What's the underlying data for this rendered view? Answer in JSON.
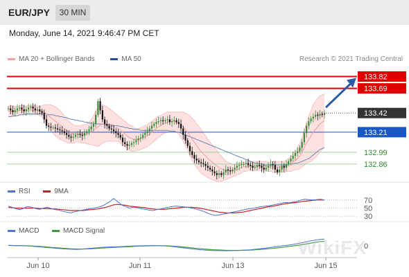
{
  "header": {
    "pair": "EUR/JPY",
    "timeframe": "30 MIN"
  },
  "timestamp": "Monday, June 14, 2021 9:46:47 PM CET",
  "legend": {
    "items": [
      {
        "label": "MA 20 + Bollinger Bands",
        "color": "#f2a3a3"
      },
      {
        "label": "MA 50",
        "color": "#2a4f8f"
      }
    ],
    "credit": "Research © 2021 Trading Central"
  },
  "colors": {
    "resistance": "#e00000",
    "pivot": "#333333",
    "support_blue": "#1a56c4",
    "support_green": "#2a8a2a",
    "candle_up": "#3a8a3a",
    "candle_down": "#111111",
    "bollinger_fill": "#fde0e0",
    "arrow": "#2b5aa8"
  },
  "chart_data": [
    {
      "type": "candlestick",
      "title": "",
      "x_ticks": [
        "Jun 10",
        "Jun 11",
        "Jun 13",
        "Jun 15"
      ],
      "ylim": [
        132.7,
        133.9
      ],
      "levels": [
        {
          "value": 133.82,
          "label": "133.82",
          "style": "resistance"
        },
        {
          "value": 133.69,
          "label": "133.69",
          "style": "resistance"
        },
        {
          "value": 133.42,
          "label": "133.42",
          "style": "pivot"
        },
        {
          "value": 133.21,
          "label": "133.21",
          "style": "support_blue"
        },
        {
          "value": 132.99,
          "label": "132.99",
          "style": "support_green"
        },
        {
          "value": 132.86,
          "label": "132.86",
          "style": "support_green"
        }
      ],
      "close_series": [
        133.47,
        133.45,
        133.43,
        133.45,
        133.47,
        133.48,
        133.46,
        133.44,
        133.46,
        133.48,
        133.49,
        133.47,
        133.45,
        133.46,
        133.44,
        133.42,
        133.35,
        133.28,
        133.27,
        133.26,
        133.26,
        133.25,
        133.24,
        133.23,
        133.22,
        133.2,
        133.18,
        133.16,
        133.15,
        133.16,
        133.18,
        133.19,
        133.18,
        133.17,
        133.2,
        133.22,
        133.24,
        133.27,
        133.3,
        133.4,
        133.55,
        133.45,
        133.35,
        133.3,
        133.28,
        133.25,
        133.24,
        133.22,
        133.2,
        133.18,
        133.15,
        133.1,
        133.08,
        133.06,
        133.07,
        133.09,
        133.1,
        133.12,
        133.14,
        133.15,
        133.18,
        133.2,
        133.22,
        133.25,
        133.28,
        133.3,
        133.32,
        133.33,
        133.34,
        133.33,
        133.34,
        133.35,
        133.32,
        133.33,
        133.34,
        133.32,
        133.3,
        133.25,
        133.18,
        133.12,
        133.06,
        133.0,
        132.96,
        132.92,
        132.9,
        132.88,
        132.87,
        132.86,
        132.84,
        132.82,
        132.8,
        132.78,
        132.76,
        132.74,
        132.76,
        132.74,
        132.77,
        132.8,
        132.79,
        132.78,
        132.8,
        132.82,
        132.84,
        132.85,
        132.86,
        132.86,
        132.87,
        132.85,
        132.84,
        132.82,
        132.83,
        132.85,
        132.84,
        132.82,
        132.8,
        132.82,
        132.84,
        132.86,
        132.85,
        132.8,
        132.77,
        132.8,
        132.84,
        132.82,
        132.86,
        132.89,
        132.92,
        132.95,
        132.98,
        133.0,
        133.04,
        133.1,
        133.2,
        133.28,
        133.33,
        133.36,
        133.38,
        133.4,
        133.39,
        133.41,
        133.4,
        133.42
      ],
      "ma20_series": [
        133.44,
        133.44,
        133.44,
        133.44,
        133.44,
        133.45,
        133.45,
        133.45,
        133.45,
        133.45,
        133.45,
        133.45,
        133.45,
        133.45,
        133.44,
        133.44,
        133.43,
        133.41,
        133.39,
        133.37,
        133.35,
        133.33,
        133.31,
        133.29,
        133.27,
        133.25,
        133.23,
        133.21,
        133.2,
        133.19,
        133.19,
        133.19,
        133.19,
        133.19,
        133.19,
        133.19,
        133.2,
        133.21,
        133.23,
        133.25,
        133.27,
        133.29,
        133.3,
        133.3,
        133.3,
        133.29,
        133.28,
        133.27,
        133.26,
        133.25,
        133.23,
        133.21,
        133.19,
        133.17,
        133.15,
        133.14,
        133.13,
        133.13,
        133.13,
        133.14,
        133.15,
        133.16,
        133.17,
        133.19,
        133.21,
        133.23,
        133.25,
        133.27,
        133.28,
        133.3,
        133.31,
        133.32,
        133.33,
        133.33,
        133.33,
        133.32,
        133.31,
        133.29,
        133.27,
        133.24,
        133.21,
        133.17,
        133.13,
        133.1,
        133.06,
        133.03,
        133.0,
        132.97,
        132.95,
        132.92,
        132.9,
        132.88,
        132.86,
        132.84,
        132.82,
        132.81,
        132.8,
        132.79,
        132.79,
        132.79,
        132.79,
        132.79,
        132.8,
        132.81,
        132.82,
        132.83,
        132.83,
        132.84,
        132.84,
        132.84,
        132.84,
        132.84,
        132.84,
        132.84,
        132.84,
        132.84,
        132.83,
        132.83,
        132.83,
        132.83,
        132.83,
        132.83,
        132.83,
        132.83,
        132.84,
        132.85,
        132.86,
        132.88,
        132.9,
        132.92,
        132.95,
        132.99,
        133.04,
        133.09,
        133.13,
        133.17,
        133.21,
        133.24,
        133.27,
        133.3,
        133.32,
        133.34
      ],
      "bb_width_series": [
        0.06,
        0.06,
        0.06,
        0.05,
        0.05,
        0.05,
        0.05,
        0.05,
        0.05,
        0.05,
        0.05,
        0.05,
        0.05,
        0.05,
        0.05,
        0.06,
        0.08,
        0.1,
        0.12,
        0.14,
        0.15,
        0.16,
        0.16,
        0.16,
        0.15,
        0.14,
        0.13,
        0.12,
        0.11,
        0.1,
        0.09,
        0.09,
        0.09,
        0.1,
        0.1,
        0.11,
        0.12,
        0.14,
        0.16,
        0.19,
        0.22,
        0.22,
        0.21,
        0.2,
        0.19,
        0.18,
        0.17,
        0.16,
        0.15,
        0.14,
        0.14,
        0.14,
        0.14,
        0.14,
        0.14,
        0.14,
        0.13,
        0.12,
        0.12,
        0.12,
        0.12,
        0.12,
        0.12,
        0.12,
        0.12,
        0.12,
        0.12,
        0.12,
        0.11,
        0.11,
        0.11,
        0.11,
        0.1,
        0.1,
        0.1,
        0.11,
        0.12,
        0.14,
        0.16,
        0.18,
        0.2,
        0.22,
        0.23,
        0.24,
        0.24,
        0.24,
        0.24,
        0.23,
        0.22,
        0.21,
        0.2,
        0.19,
        0.18,
        0.17,
        0.15,
        0.14,
        0.12,
        0.1,
        0.09,
        0.08,
        0.07,
        0.06,
        0.06,
        0.06,
        0.06,
        0.05,
        0.05,
        0.05,
        0.05,
        0.05,
        0.05,
        0.05,
        0.05,
        0.05,
        0.05,
        0.05,
        0.05,
        0.05,
        0.06,
        0.06,
        0.06,
        0.06,
        0.06,
        0.06,
        0.06,
        0.07,
        0.08,
        0.09,
        0.1,
        0.12,
        0.14,
        0.16,
        0.19,
        0.22,
        0.25,
        0.28,
        0.3,
        0.31,
        0.31,
        0.31,
        0.3,
        0.29,
        0.28,
        0.27
      ],
      "ma50_series": [
        133.38,
        133.38,
        133.39,
        133.39,
        133.39,
        133.4,
        133.4,
        133.4,
        133.41,
        133.41,
        133.41,
        133.41,
        133.41,
        133.41,
        133.41,
        133.41,
        133.41,
        133.41,
        133.4,
        133.4,
        133.4,
        133.39,
        133.39,
        133.38,
        133.38,
        133.37,
        133.37,
        133.36,
        133.35,
        133.35,
        133.34,
        133.34,
        133.33,
        133.33,
        133.32,
        133.32,
        133.31,
        133.31,
        133.31,
        133.3,
        133.3,
        133.3,
        133.3,
        133.29,
        133.29,
        133.29,
        133.29,
        133.28,
        133.28,
        133.28,
        133.27,
        133.27,
        133.26,
        133.26,
        133.25,
        133.25,
        133.24,
        133.24,
        133.24,
        133.23,
        133.23,
        133.23,
        133.23,
        133.23,
        133.23,
        133.23,
        133.23,
        133.23,
        133.23,
        133.23,
        133.23,
        133.23,
        133.22,
        133.22,
        133.22,
        133.21,
        133.21,
        133.2,
        133.19,
        133.18,
        133.17,
        133.16,
        133.15,
        133.14,
        133.13,
        133.12,
        133.11,
        133.1,
        133.09,
        133.08,
        133.07,
        133.06,
        133.05,
        133.04,
        133.03,
        133.02,
        133.01,
        133.0,
        132.99,
        132.98,
        132.97,
        132.96,
        132.95,
        132.94,
        132.93,
        132.92,
        132.91,
        132.9,
        132.89,
        132.88,
        132.87,
        132.87,
        132.86,
        132.86,
        132.85,
        132.85,
        132.85,
        132.85,
        132.85,
        132.85,
        132.85,
        132.85,
        132.85,
        132.85,
        132.85,
        132.86,
        132.86,
        132.86,
        132.87,
        132.87,
        132.88,
        132.89,
        132.9,
        132.91,
        132.92,
        132.94,
        132.96,
        132.98,
        133.0,
        133.02,
        133.03,
        133.04
      ],
      "projection_arrow": {
        "from_value": 133.42,
        "to_value": 133.82
      }
    },
    {
      "type": "line",
      "title": "",
      "series": [
        {
          "name": "RSI",
          "color": "#4a74d0"
        },
        {
          "name": "9MA",
          "color": "#c62020"
        }
      ],
      "levels": [
        70,
        50,
        30
      ],
      "ylim": [
        20,
        80
      ],
      "rsi_series": [
        55,
        52,
        48,
        46,
        50,
        54,
        52,
        49,
        47,
        50,
        52,
        49,
        46,
        45,
        42,
        40,
        38,
        41,
        43,
        45,
        47,
        49,
        50,
        52,
        55,
        60,
        66,
        74,
        66,
        58,
        54,
        50,
        52,
        51,
        49,
        47,
        45,
        44,
        46,
        48,
        50,
        52,
        54,
        55,
        54,
        53,
        52,
        50,
        48,
        45,
        42,
        38,
        34,
        32,
        33,
        35,
        37,
        39,
        41,
        43,
        45,
        47,
        49,
        50,
        52,
        54,
        55,
        56,
        58,
        60,
        62,
        64,
        63,
        65,
        67,
        70,
        72,
        71,
        70,
        71,
        72,
        70
      ],
      "ma9_series": [
        52,
        51,
        50,
        50,
        50,
        50,
        50,
        50,
        49,
        49,
        49,
        48,
        48,
        47,
        46,
        45,
        44,
        44,
        44,
        44,
        45,
        46,
        47,
        48,
        50,
        52,
        55,
        58,
        59,
        58,
        57,
        55,
        54,
        53,
        52,
        51,
        49,
        48,
        47,
        47,
        47,
        48,
        49,
        50,
        51,
        52,
        52,
        52,
        51,
        50,
        48,
        46,
        44,
        42,
        40,
        39,
        38,
        38,
        38,
        39,
        40,
        42,
        44,
        46,
        48,
        50,
        52,
        54,
        55,
        57,
        59,
        61,
        62,
        63,
        64,
        66,
        67,
        68,
        69,
        70,
        70,
        70
      ]
    },
    {
      "type": "line",
      "title": "",
      "series": [
        {
          "name": "MACD",
          "color": "#4a74d0"
        },
        {
          "name": "MACD Signal",
          "color": "#3c9a3c"
        }
      ],
      "levels": [
        0
      ],
      "ylim": [
        -1,
        1
      ],
      "macd_series": [
        0.05,
        0.03,
        0.02,
        0.0,
        -0.05,
        -0.1,
        -0.15,
        -0.2,
        -0.25,
        -0.3,
        -0.33,
        -0.35,
        -0.3,
        -0.25,
        -0.2,
        -0.15,
        -0.12,
        -0.1,
        -0.08,
        -0.05,
        -0.02,
        0.0,
        0.02,
        0.03,
        0.02,
        0.0,
        -0.04,
        -0.1,
        -0.18,
        -0.25,
        -0.32,
        -0.38,
        -0.42,
        -0.45,
        -0.46,
        -0.47,
        -0.46,
        -0.44,
        -0.42,
        -0.38,
        -0.32,
        -0.25,
        -0.18,
        -0.1,
        -0.02,
        0.06,
        0.15,
        0.25,
        0.38,
        0.5,
        0.6,
        0.65
      ],
      "signal_series": [
        0.04,
        0.03,
        0.02,
        0.01,
        -0.02,
        -0.06,
        -0.1,
        -0.15,
        -0.19,
        -0.24,
        -0.28,
        -0.31,
        -0.31,
        -0.29,
        -0.26,
        -0.22,
        -0.18,
        -0.15,
        -0.12,
        -0.09,
        -0.06,
        -0.03,
        -0.01,
        0.01,
        0.02,
        0.01,
        -0.01,
        -0.05,
        -0.1,
        -0.16,
        -0.22,
        -0.28,
        -0.33,
        -0.37,
        -0.4,
        -0.43,
        -0.44,
        -0.44,
        -0.43,
        -0.41,
        -0.38,
        -0.33,
        -0.28,
        -0.22,
        -0.15,
        -0.08,
        0.0,
        0.08,
        0.18,
        0.28,
        0.38,
        0.45
      ]
    }
  ]
}
